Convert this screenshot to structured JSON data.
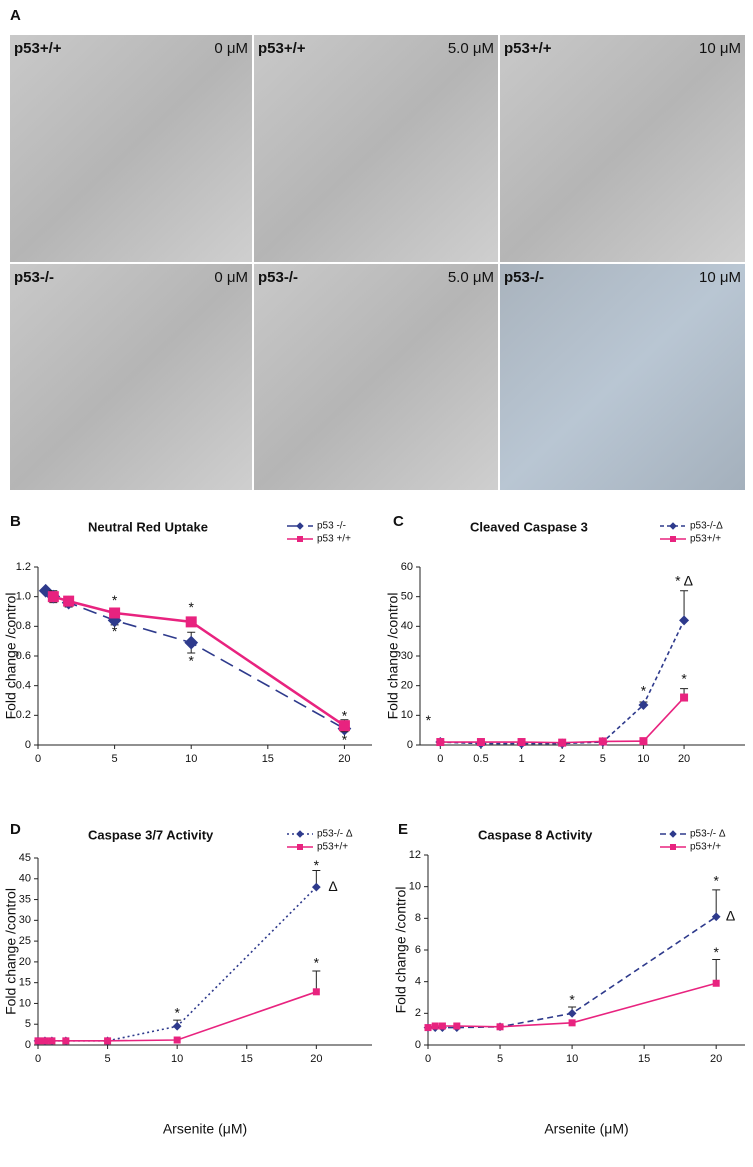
{
  "panel_a": {
    "label": "A",
    "images": [
      {
        "genotype": "p53+/+",
        "dose": "0 μM"
      },
      {
        "genotype": "p53+/+",
        "dose": "5.0 μM"
      },
      {
        "genotype": "p53+/+",
        "dose": "10 μM"
      },
      {
        "genotype": "p53-/-",
        "dose": "0 μM"
      },
      {
        "genotype": "p53-/-",
        "dose": "5.0 μM"
      },
      {
        "genotype": "p53-/-",
        "dose": "10 μM"
      }
    ]
  },
  "chart_data": [
    {
      "type": "line",
      "panel": "B",
      "title": "Neutral Red Uptake",
      "y_label": "Fold change /control",
      "x": [
        0.5,
        1,
        2,
        5,
        10,
        20
      ],
      "xlim": [
        0,
        21.8
      ],
      "xticks": [
        0,
        5,
        10,
        15,
        20
      ],
      "ylim": [
        0,
        1.2
      ],
      "yticks": [
        0,
        {
          "value": 0.2,
          "label": "0.2"
        },
        {
          "value": 0.4,
          "label": "0.4"
        },
        {
          "value": 0.6,
          "label": "0.6"
        },
        {
          "value": 0.8,
          "label": "0.8"
        },
        {
          "value": 1,
          "label": "1.0"
        },
        {
          "value": 1.2,
          "label": "1.2"
        }
      ],
      "error_bars": "both",
      "series": [
        {
          "name": "p53 -/-",
          "color": "#2e3a8c",
          "marker": "diamond",
          "dash": "14 7",
          "values": [
            1.04,
            1.0,
            0.96,
            0.84,
            0.69,
            0.11
          ],
          "errors": [
            0.015,
            0.04,
            0.03,
            0.03,
            0.07,
            0.02
          ]
        },
        {
          "name": "p53 +/+",
          "color": "#e8237f",
          "marker": "square",
          "dash": "none",
          "values": [
            null,
            1.0,
            0.97,
            0.89,
            0.83,
            0.13
          ],
          "errors": [
            null,
            0.03,
            0.02,
            0.02,
            0.02,
            0.04
          ]
        }
      ],
      "annotations": [
        {
          "text": "*",
          "x": 5,
          "y": 0.97
        },
        {
          "text": "*",
          "x": 5,
          "y": 0.76
        },
        {
          "text": "*",
          "x": 10,
          "y": 0.92
        },
        {
          "text": "*",
          "x": 10,
          "y": 0.56
        },
        {
          "text": "*",
          "x": 20,
          "y": 0.19
        },
        {
          "text": "*",
          "x": 20,
          "y": 0.03
        }
      ]
    },
    {
      "type": "line",
      "panel": "C",
      "title": "Cleaved Caspase 3",
      "y_label": "Fold change /control",
      "categories": [
        "0",
        "0.5",
        "1",
        "2",
        "5",
        "10",
        "20"
      ],
      "ylim": [
        0,
        60
      ],
      "yticks": [
        0,
        10,
        20,
        30,
        40,
        50,
        60
      ],
      "error_bars": "up",
      "series": [
        {
          "name": "p53-/-Δ",
          "color": "#2e3a8c",
          "marker": "diamond",
          "dash": "4 3",
          "values": [
            1,
            0.5,
            0.5,
            0.5,
            1,
            13.5,
            42
          ],
          "errors": [
            null,
            null,
            null,
            null,
            null,
            1,
            10
          ]
        },
        {
          "name": "p53+/+",
          "color": "#e8237f",
          "marker": "square",
          "dash": "none",
          "values": [
            1,
            1,
            1,
            0.8,
            1.2,
            1.3,
            16
          ],
          "errors": [
            null,
            null,
            null,
            null,
            null,
            null,
            3
          ]
        }
      ],
      "annotations": [
        {
          "text": "*",
          "category": "0",
          "y": 8
        },
        {
          "text": "*",
          "category": "10",
          "y": 18
        },
        {
          "text": "* Δ",
          "category": "20",
          "y": 55
        },
        {
          "text": "*",
          "category": "20",
          "y": 22
        }
      ]
    },
    {
      "type": "line",
      "panel": "D",
      "title": "Caspase 3/7 Activity",
      "y_label": "Fold change /control",
      "x_label": "Arsenite (μM)",
      "x": [
        0,
        0.5,
        1,
        2,
        5,
        10,
        20
      ],
      "xlim": [
        0,
        24
      ],
      "xticks": [
        0,
        5,
        10,
        15,
        20
      ],
      "ylim": [
        0,
        45
      ],
      "yticks": [
        0,
        5,
        10,
        15,
        20,
        25,
        30,
        35,
        40,
        45
      ],
      "error_bars": "up",
      "series": [
        {
          "name": "p53-/- Δ",
          "color": "#2e3a8c",
          "marker": "diamond",
          "dash": "2 3",
          "values": [
            1,
            1,
            1,
            1,
            1,
            4.5,
            38
          ],
          "errors": [
            null,
            null,
            null,
            null,
            null,
            1.5,
            4
          ]
        },
        {
          "name": "p53+/+",
          "color": "#e8237f",
          "marker": "square",
          "dash": "none",
          "values": [
            1,
            1,
            1,
            1,
            1,
            1.2,
            12.8
          ],
          "errors": [
            null,
            null,
            null,
            null,
            null,
            null,
            5
          ]
        }
      ],
      "annotations": [
        {
          "text": "*",
          "x": 10,
          "y": 7.5
        },
        {
          "text": "*",
          "x": 20,
          "y": 43
        },
        {
          "text": "Δ",
          "x": 21.2,
          "y": 38
        },
        {
          "text": "*",
          "x": 20,
          "y": 19.5
        }
      ]
    },
    {
      "type": "line",
      "panel": "E",
      "title": "Caspase 8 Activity",
      "y_label": "Fold change /control",
      "x_label": "Arsenite (μM)",
      "x": [
        0,
        0.5,
        1,
        2,
        5,
        10,
        20
      ],
      "xlim": [
        0,
        22
      ],
      "xticks": [
        0,
        5,
        10,
        15,
        20
      ],
      "ylim": [
        0,
        12
      ],
      "yticks": [
        0,
        2,
        4,
        6,
        8,
        10,
        12
      ],
      "error_bars": "up",
      "series": [
        {
          "name": "p53-/- Δ",
          "color": "#2e3a8c",
          "marker": "diamond",
          "dash": "6 4",
          "values": [
            1.1,
            1.1,
            1.1,
            1.1,
            1.15,
            2.0,
            8.1
          ],
          "errors": [
            null,
            null,
            null,
            null,
            null,
            0.4,
            1.7
          ]
        },
        {
          "name": "p53+/+",
          "color": "#e8237f",
          "marker": "square",
          "dash": "none",
          "values": [
            1.1,
            1.2,
            1.2,
            1.2,
            1.15,
            1.4,
            3.9
          ],
          "errors": [
            null,
            null,
            null,
            null,
            null,
            null,
            1.5
          ]
        }
      ],
      "annotations": [
        {
          "text": "*",
          "x": 10,
          "y": 2.8
        },
        {
          "text": "*",
          "x": 20,
          "y": 10.3
        },
        {
          "text": "Δ",
          "x": 21,
          "y": 8.1
        },
        {
          "text": "*",
          "x": 20,
          "y": 5.8
        }
      ]
    }
  ]
}
